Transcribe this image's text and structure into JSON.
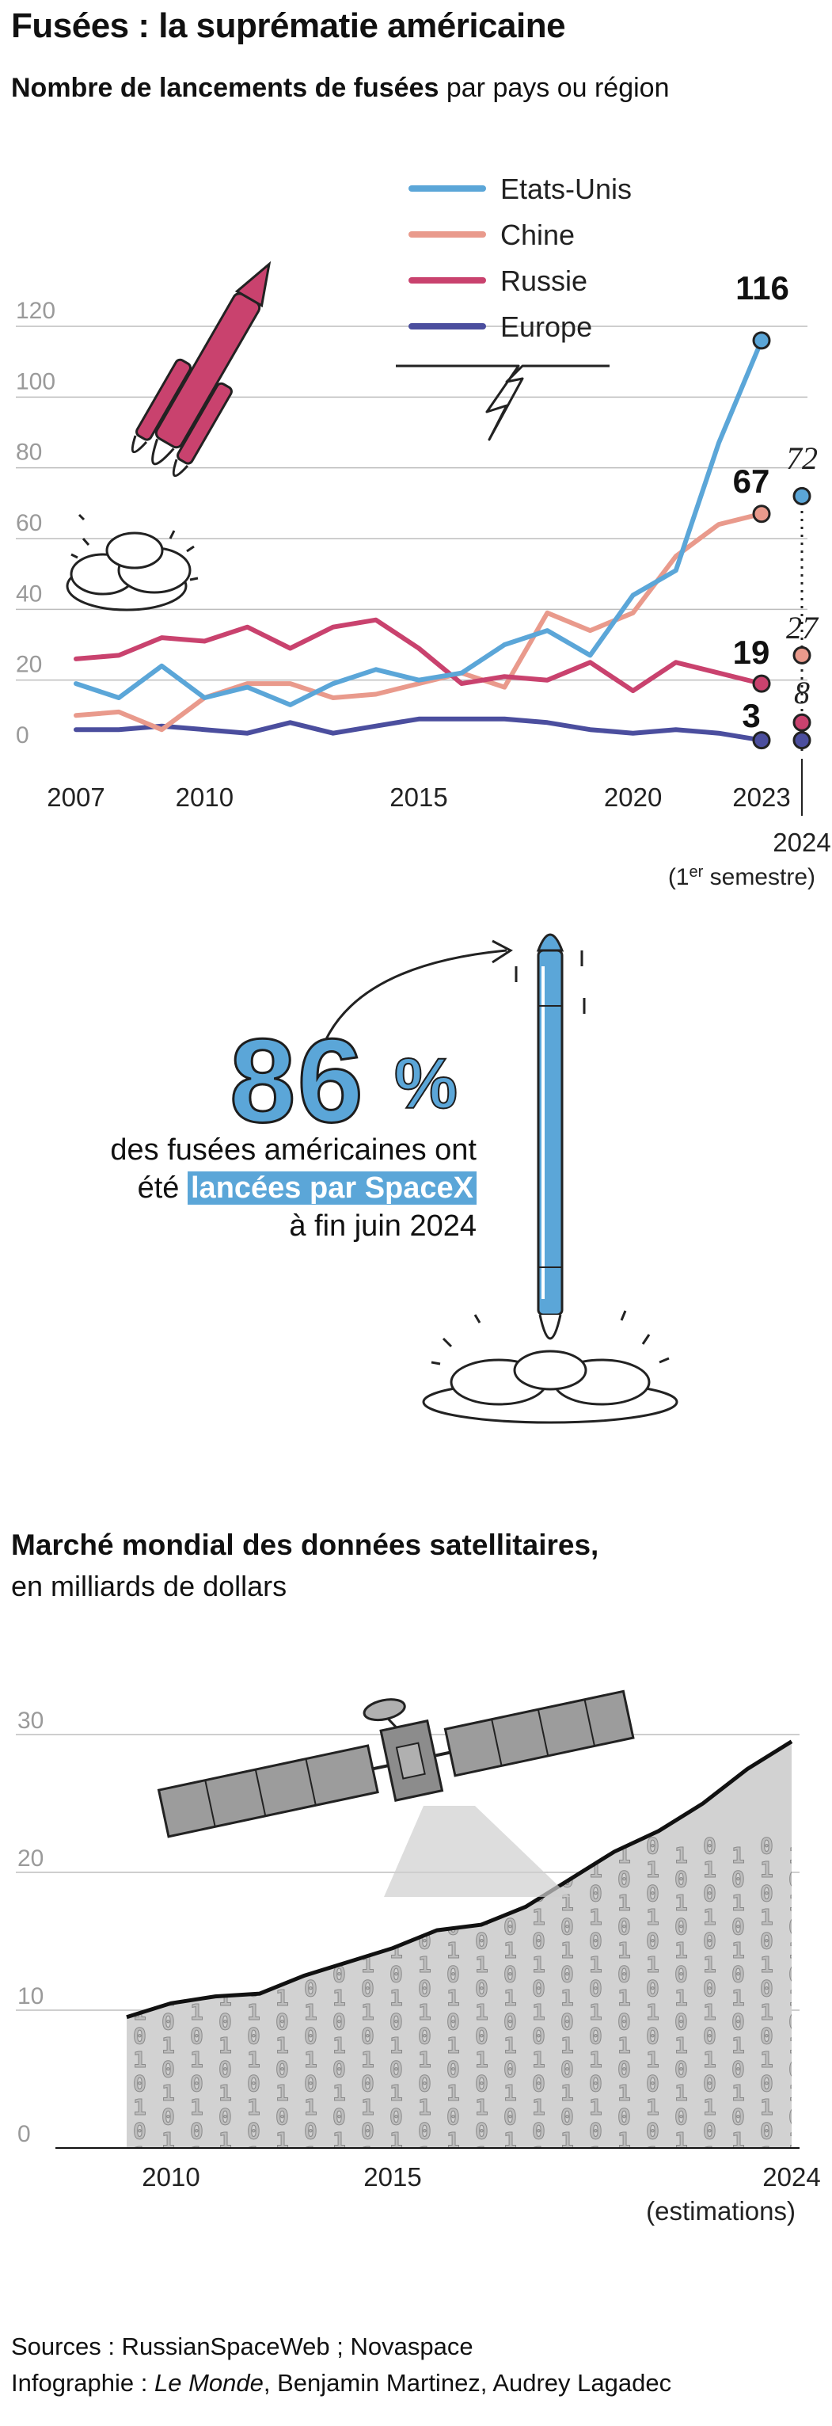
{
  "header": {
    "title": "Fusées : la suprématie américaine",
    "subtitle_bold": "Nombre de lancements de fusées",
    "subtitle_rest": " par pays ou région"
  },
  "colors": {
    "usa": "#5ba6d8",
    "china": "#e99a8c",
    "russia": "#c9426e",
    "europe": "#4b4e9e",
    "highlight": "#5ba6d8",
    "grid": "#bdbdbd"
  },
  "chart_data": [
    {
      "type": "line",
      "title": "Nombre de lancements de fusées par pays ou région",
      "x": [
        2007,
        2008,
        2009,
        2010,
        2011,
        2012,
        2013,
        2014,
        2015,
        2016,
        2017,
        2018,
        2019,
        2020,
        2021,
        2022,
        2023
      ],
      "x_tick_labels": [
        "2007",
        "2010",
        "2015",
        "2020",
        "2023"
      ],
      "y_ticks": [
        0,
        20,
        40,
        60,
        80,
        100,
        120
      ],
      "ylim": [
        0,
        125
      ],
      "grid": true,
      "legend_position": "top",
      "series": [
        {
          "name": "Etats-Unis",
          "values": [
            19,
            15,
            24,
            15,
            18,
            13,
            19,
            23,
            20,
            22,
            30,
            34,
            27,
            44,
            51,
            87,
            116
          ]
        },
        {
          "name": "Chine",
          "values": [
            10,
            11,
            6,
            15,
            19,
            19,
            15,
            16,
            19,
            22,
            18,
            39,
            34,
            39,
            55,
            64,
            67
          ]
        },
        {
          "name": "Russie",
          "values": [
            26,
            27,
            32,
            31,
            35,
            29,
            35,
            37,
            29,
            19,
            21,
            20,
            25,
            17,
            25,
            22,
            19
          ]
        },
        {
          "name": "Europe",
          "values": [
            6,
            6,
            7,
            6,
            5,
            8,
            5,
            7,
            9,
            9,
            9,
            8,
            6,
            5,
            6,
            5,
            3
          ]
        }
      ],
      "end_labels_2023": [
        "116",
        "67",
        "19",
        "3"
      ],
      "partial_2024": {
        "label": "2024",
        "note_prefix": "(1",
        "note_sup": "er",
        "note_suffix": " semestre)",
        "values": [
          {
            "series": "Etats-Unis",
            "value": 72,
            "label": "72"
          },
          {
            "series": "Chine",
            "value": 27,
            "label": "27"
          },
          {
            "series": "Russie",
            "value": 8,
            "label": "8"
          },
          {
            "series": "Europe",
            "value": 3,
            "label": ""
          }
        ]
      }
    },
    {
      "type": "area",
      "title": "Marché mondial des données satellitaires,",
      "subtitle": "en milliards de dollars",
      "x": [
        2009,
        2010,
        2011,
        2012,
        2013,
        2014,
        2015,
        2016,
        2017,
        2018,
        2019,
        2020,
        2021,
        2022,
        2023,
        2024
      ],
      "values": [
        9.5,
        10.5,
        11,
        11.2,
        12.5,
        13.5,
        14.5,
        15.8,
        16.2,
        17.5,
        19.5,
        21.5,
        23,
        25,
        27.5,
        29.5
      ],
      "x_tick_labels": [
        "2010",
        "2015",
        "2024"
      ],
      "x_note": "(estimations)",
      "y_ticks": [
        0,
        10,
        20,
        30
      ],
      "ylim": [
        0,
        30
      ],
      "grid": true
    }
  ],
  "stat": {
    "value": "86",
    "unit": "%",
    "line1": "des fusées américaines ont",
    "line2_pre": "été ",
    "line2_highlight": "lancées par SpaceX",
    "line3": "à fin juin 2024"
  },
  "market": {
    "title": "Marché mondial des données satellitaires,",
    "subtitle": "en milliards de dollars",
    "binary_digits": [
      "0",
      "1"
    ]
  },
  "icons": {
    "rocket1": "rocket-icon",
    "rocket2": "spacex-rocket-icon",
    "satellite": "satellite-icon",
    "lightning": "lightning-icon",
    "arrow": "curved-arrow-icon"
  },
  "sources": {
    "line1": "Sources : RussianSpaceWeb ; Novaspace",
    "line2_prefix": "Infographie : ",
    "line2_italic": "Le Monde",
    "line2_suffix": ", Benjamin Martinez, Audrey Lagadec"
  }
}
